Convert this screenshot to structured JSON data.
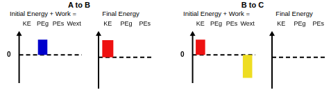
{
  "chart_data": [
    {
      "type": "bar",
      "title": "A to B",
      "subtitle": "Initial Energy + Work =",
      "categories": [
        "KE",
        "PEg",
        "PEs",
        "Wext"
      ],
      "values": [
        0,
        3,
        0,
        0
      ],
      "colors": [
        "#0000cc",
        "#0000cc",
        "#0000cc",
        "#eedd22"
      ],
      "ylim": [
        -5.5,
        4
      ],
      "yticks": [
        0
      ],
      "grid": true
    },
    {
      "type": "bar",
      "subtitle": "Final Energy",
      "categories": [
        "KE",
        "PEg",
        "PEs"
      ],
      "values": [
        3,
        0,
        0
      ],
      "colors": [
        "#ee1111",
        "#0000cc",
        "#0000cc"
      ],
      "ylim": [
        -5.5,
        4
      ],
      "yticks": [
        0
      ],
      "grid": true,
      "tick_labels": "x"
    },
    {
      "type": "bar",
      "title": "B to C",
      "subtitle": "Initial Energy + Work =",
      "categories": [
        "KE",
        "PEg",
        "PEs",
        "Wext"
      ],
      "values": [
        3,
        0,
        0,
        -4.5
      ],
      "colors": [
        "#ee1111",
        "#0000cc",
        "#0000cc",
        "#eedd22"
      ],
      "ylim": [
        -5.5,
        4
      ],
      "yticks": [
        0
      ],
      "grid": true
    },
    {
      "type": "bar",
      "subtitle": "Final Energy",
      "categories": [
        "KE",
        "PEg",
        "PEs"
      ],
      "values": [
        0,
        0,
        0
      ],
      "colors": [
        "#ee1111",
        "#0000cc",
        "#0000cc"
      ],
      "ylim": [
        -5.5,
        4
      ],
      "yticks": [
        0
      ],
      "grid": true,
      "tick_labels": "x"
    }
  ]
}
